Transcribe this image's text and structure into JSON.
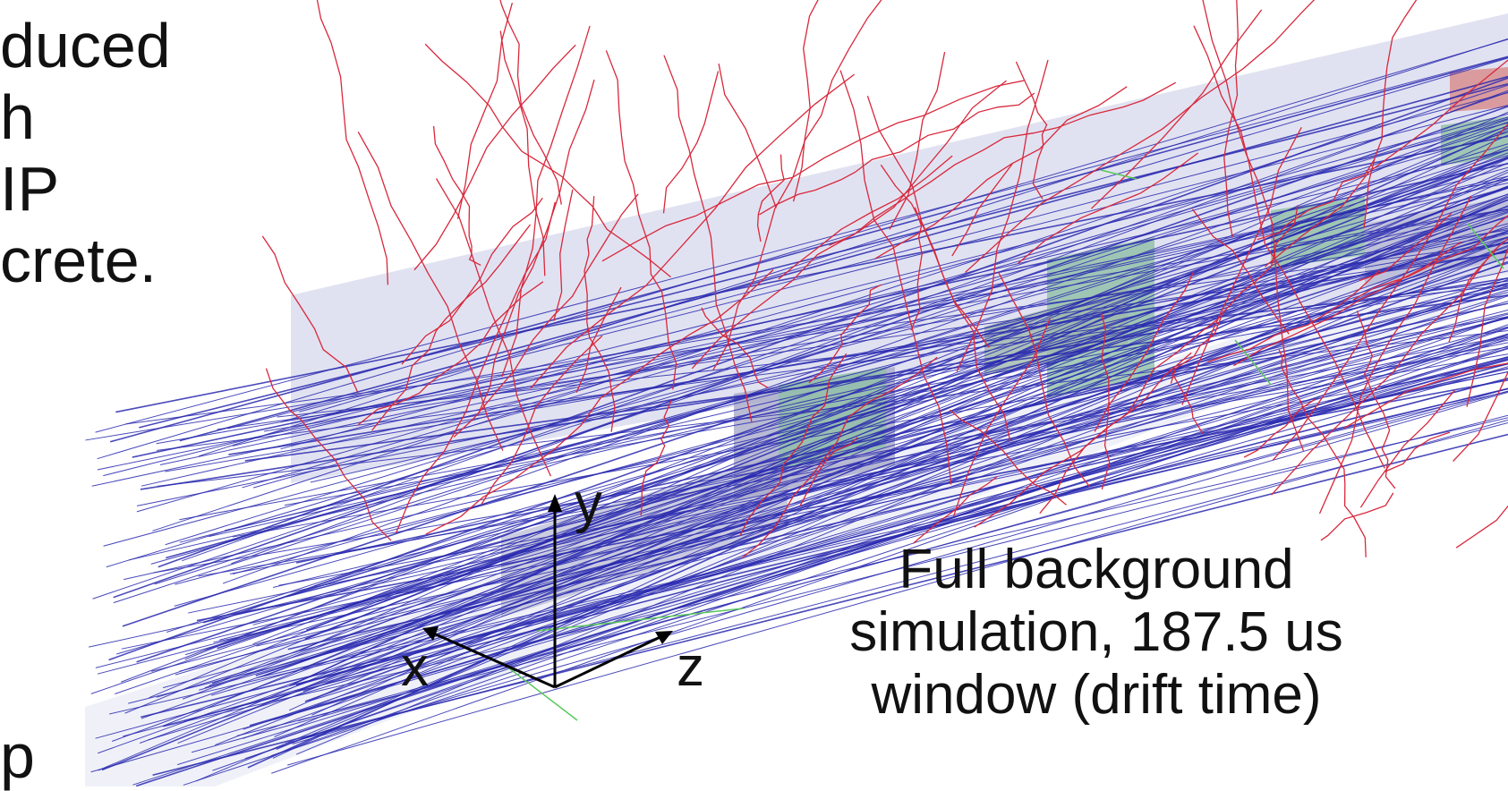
{
  "left_text": {
    "lines": [
      "duced",
      "h",
      "IP",
      "crete."
    ],
    "bottom_fragment": "p"
  },
  "axes": {
    "x_label": "x",
    "y_label": "y",
    "z_label": "z"
  },
  "caption": {
    "line1": "Full background",
    "line2": "simulation, 187.5 us",
    "line3": "window (drift time)"
  },
  "colors": {
    "muon_tracks": "#2a2ab0",
    "secondary_tracks": "#d8283c",
    "volume_fill": "#c8cae6",
    "detector_blocks": "#8fbfa6",
    "gamma_tracks": "#5ac85a"
  },
  "icons": [
    "axis-triad-icon"
  ]
}
